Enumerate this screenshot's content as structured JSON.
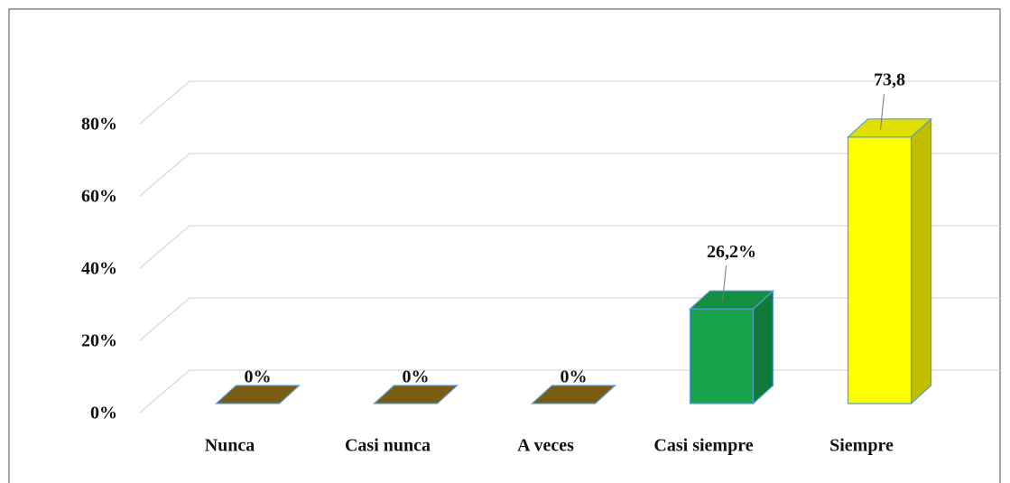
{
  "chart_data": {
    "type": "bar3d",
    "categories": [
      "Nunca",
      "Casi nunca",
      "A veces",
      "Casi siempre",
      "Siempre"
    ],
    "values": [
      0,
      0,
      0,
      26.2,
      73.8
    ],
    "value_labels": [
      "0%",
      "0%",
      "0%",
      "26,2%",
      "73,8"
    ],
    "colors": [
      "#8b6914",
      "#8b6914",
      "#8b6914",
      "#17a34a",
      "#ffff00"
    ],
    "ylim": [
      0,
      80
    ],
    "yticks": [
      {
        "value": 0,
        "label": "0%"
      },
      {
        "value": 20,
        "label": "20%"
      },
      {
        "value": 40,
        "label": "40%"
      },
      {
        "value": 60,
        "label": "60%"
      },
      {
        "value": 80,
        "label": "80%"
      }
    ],
    "grid": true
  }
}
